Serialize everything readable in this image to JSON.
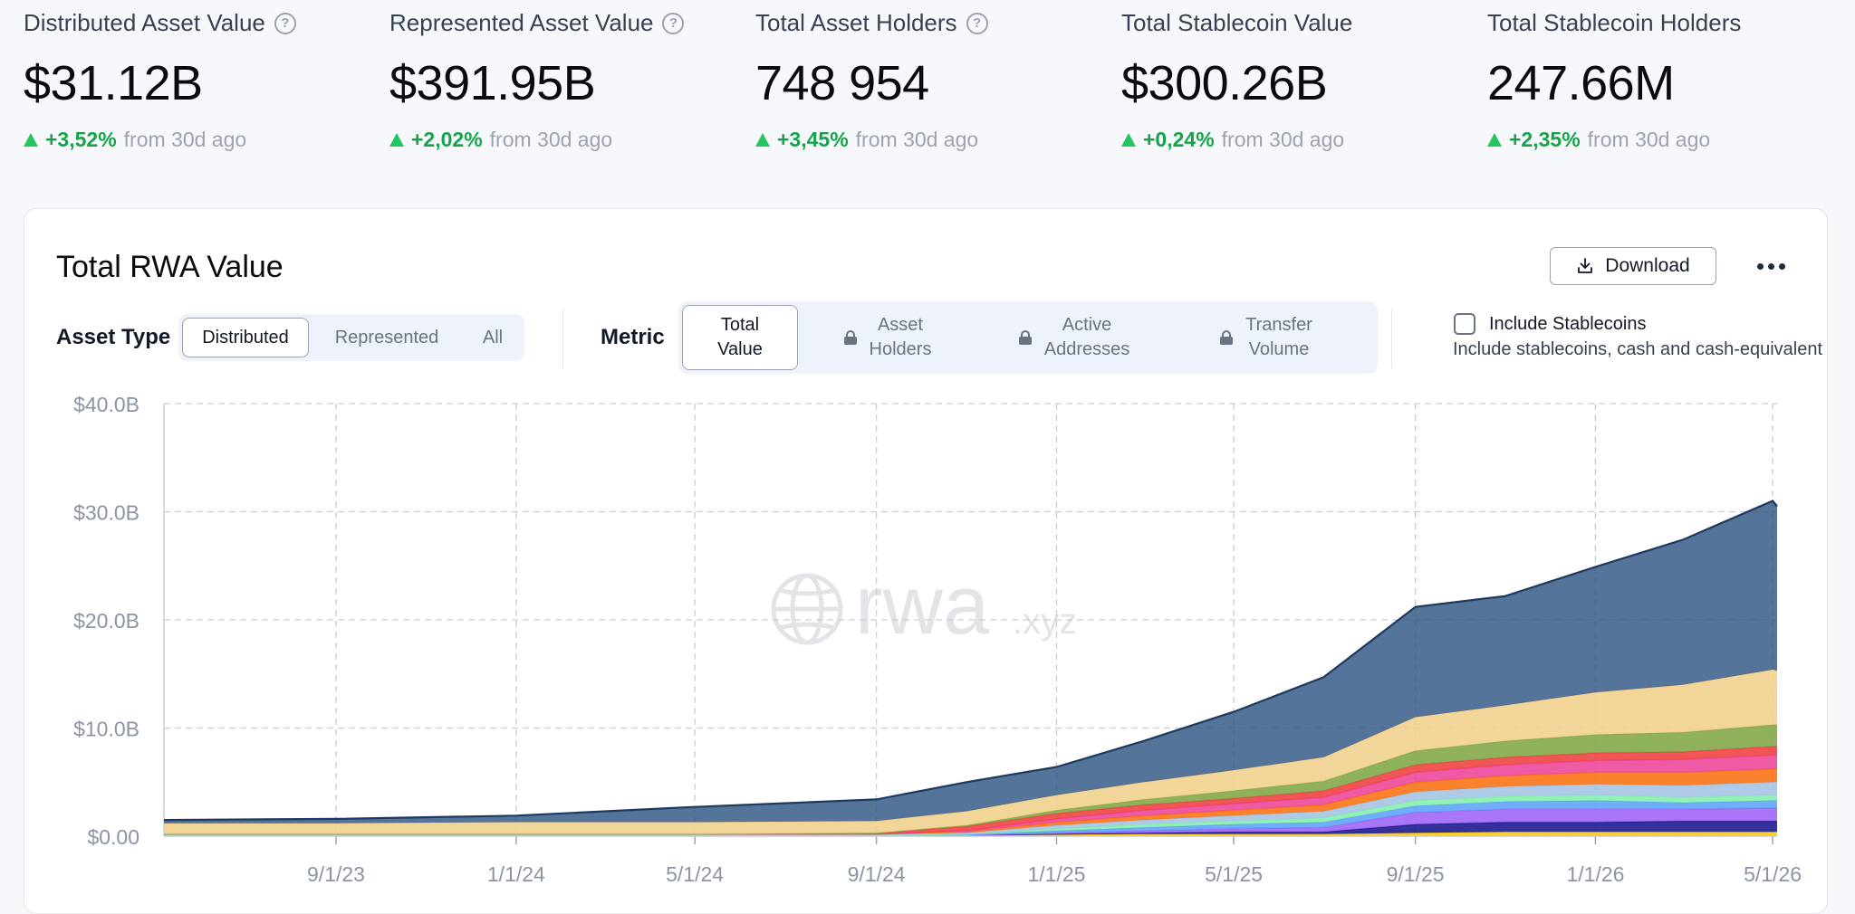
{
  "stats": [
    {
      "label": "Distributed Asset Value",
      "value": "$31.12B",
      "change": "+3,52%",
      "period": "from 30d ago",
      "help": true
    },
    {
      "label": "Represented Asset Value",
      "value": "$391.95B",
      "change": "+2,02%",
      "period": "from 30d ago",
      "help": true
    },
    {
      "label": "Total Asset Holders",
      "value": "748 954",
      "change": "+3,45%",
      "period": "from 30d ago",
      "help": true
    },
    {
      "label": "Total Stablecoin Value",
      "value": "$300.26B",
      "change": "+0,24%",
      "period": "from 30d ago",
      "help": false
    },
    {
      "label": "Total Stablecoin Holders",
      "value": "247.66M",
      "change": "+2,35%",
      "period": "from 30d ago",
      "help": false
    }
  ],
  "card": {
    "title": "Total RWA Value",
    "download_label": "Download",
    "asset_type": {
      "label": "Asset Type",
      "options": [
        "Distributed",
        "Represented",
        "All"
      ],
      "selected": "Distributed"
    },
    "metric": {
      "label": "Metric",
      "options": [
        {
          "lines": [
            "Total",
            "Value"
          ],
          "locked": false
        },
        {
          "lines": [
            "Asset",
            "Holders"
          ],
          "locked": true
        },
        {
          "lines": [
            "Active",
            "Addresses"
          ],
          "locked": true
        },
        {
          "lines": [
            "Transfer",
            "Volume"
          ],
          "locked": true
        }
      ],
      "selected": "Total Value"
    },
    "stablecoins": {
      "label": "Include Stablecoins",
      "checked": false,
      "description": "Include stablecoins, cash and cash-equivalents"
    }
  },
  "watermark": {
    "brand": "rwa",
    "suffix": ".xyz"
  },
  "chart_data": {
    "type": "area",
    "stacked": true,
    "ylim": [
      0,
      40
    ],
    "y_unit": "B",
    "y_ticks": [
      "$0.00",
      "$10.0B",
      "$20.0B",
      "$30.0B",
      "$40.0B"
    ],
    "x_ticks": [
      "9/1/23",
      "1/1/24",
      "5/1/24",
      "9/1/24",
      "1/1/25",
      "5/1/25",
      "9/1/25",
      "1/1/26",
      "5/1/26"
    ],
    "x": [
      "2023-05-01",
      "2023-09-01",
      "2024-01-01",
      "2024-05-01",
      "2024-09-01",
      "2024-11-01",
      "2025-01-01",
      "2025-03-01",
      "2025-05-01",
      "2025-07-01",
      "2025-09-01",
      "2025-11-01",
      "2026-01-01",
      "2026-03-01",
      "2026-05-01",
      "2026-05-15"
    ],
    "grid": true,
    "series": [
      {
        "color": "#facc15",
        "values": [
          0.1,
          0.1,
          0.1,
          0.1,
          0.1,
          0.1,
          0.15,
          0.2,
          0.2,
          0.2,
          0.3,
          0.4,
          0.4,
          0.4,
          0.4,
          0.4
        ]
      },
      {
        "color": "#1e1b8f",
        "values": [
          0,
          0,
          0,
          0,
          0,
          0,
          0.05,
          0.1,
          0.2,
          0.2,
          0.8,
          0.9,
          0.9,
          1.0,
          1.0,
          1.0
        ]
      },
      {
        "color": "#9f67f5",
        "values": [
          0,
          0,
          0,
          0,
          0,
          0,
          0.1,
          0.2,
          0.3,
          0.4,
          1.1,
          1.2,
          1.2,
          1.1,
          1.2,
          1.2
        ]
      },
      {
        "color": "#60a5fa",
        "values": [
          0,
          0,
          0,
          0,
          0,
          0.05,
          0.2,
          0.3,
          0.4,
          0.5,
          0.6,
          0.7,
          0.8,
          0.6,
          0.7,
          0.7
        ]
      },
      {
        "color": "#86efac",
        "values": [
          0,
          0,
          0,
          0,
          0,
          0.05,
          0.2,
          0.3,
          0.3,
          0.4,
          0.5,
          0.5,
          0.5,
          0.5,
          0.5,
          0.5
        ]
      },
      {
        "color": "#a5c4e4",
        "values": [
          0.1,
          0.1,
          0.1,
          0.1,
          0.1,
          0.1,
          0.3,
          0.4,
          0.5,
          0.6,
          0.8,
          0.9,
          1.0,
          1.1,
          1.2,
          1.2
        ]
      },
      {
        "color": "#f97316",
        "values": [
          0,
          0,
          0,
          0,
          0,
          0.1,
          0.3,
          0.4,
          0.5,
          0.6,
          0.9,
          1.0,
          1.1,
          1.2,
          1.2,
          1.2
        ]
      },
      {
        "color": "#ec4899",
        "values": [
          0,
          0,
          0,
          0,
          0,
          0.1,
          0.3,
          0.5,
          0.6,
          0.7,
          0.9,
          1.0,
          1.1,
          1.2,
          1.3,
          1.3
        ]
      },
      {
        "color": "#ef4444",
        "values": [
          0,
          0,
          0,
          0,
          0.1,
          0.4,
          0.5,
          0.5,
          0.5,
          0.6,
          0.7,
          0.7,
          0.7,
          0.7,
          0.8,
          0.8
        ]
      },
      {
        "color": "#84a84a",
        "values": [
          0,
          0,
          0,
          0,
          0,
          0.1,
          0.3,
          0.5,
          0.7,
          0.9,
          1.3,
          1.5,
          1.7,
          1.8,
          2.0,
          2.0
        ]
      },
      {
        "color": "#f1d08e",
        "values": [
          1.0,
          1.0,
          1.1,
          1.1,
          1.1,
          1.3,
          1.4,
          1.6,
          1.9,
          2.2,
          3.1,
          3.3,
          3.9,
          4.4,
          5.1,
          5.0
        ]
      },
      {
        "color": "#2f5584",
        "values": [
          0.3,
          0.4,
          0.6,
          1.4,
          2.0,
          2.7,
          2.6,
          3.8,
          5.4,
          7.4,
          10.2,
          10.1,
          11.6,
          13.4,
          15.6,
          15.2
        ]
      }
    ]
  }
}
